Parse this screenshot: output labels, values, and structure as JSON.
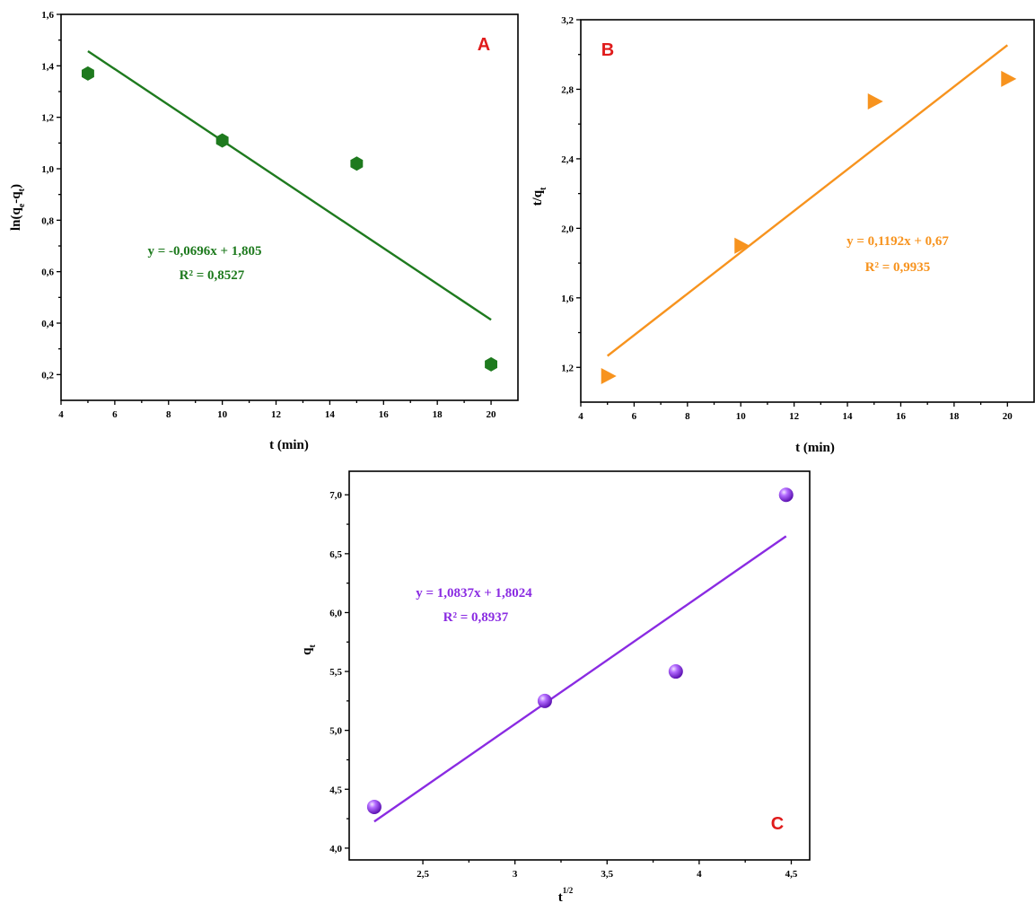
{
  "chart_data": [
    {
      "id": "A",
      "type": "scatter",
      "panel_label": "A",
      "xlabel": "t (min)",
      "ylabel": "ln(qe-qt)",
      "ylabel_parts": {
        "main": "ln(q",
        "sub1": "e",
        "mid": "-q",
        "sub2": "t",
        "end": ")"
      },
      "xlim": [
        4,
        21
      ],
      "ylim": [
        0.1,
        1.6
      ],
      "xticks": [
        4,
        6,
        8,
        10,
        12,
        14,
        16,
        18,
        20
      ],
      "yticks": [
        0.2,
        0.4,
        0.6,
        0.8,
        1.0,
        1.2,
        1.4,
        1.6
      ],
      "decimal_comma": true,
      "color": "#1e7a1e",
      "marker": "hexagon",
      "x": [
        5,
        10,
        15,
        20
      ],
      "y": [
        1.37,
        1.11,
        1.02,
        0.24
      ],
      "fit": {
        "slope": -0.0696,
        "intercept": 1.805,
        "x_range": [
          5,
          20
        ]
      },
      "equation": "y = -0,0696x + 1,805",
      "r2": "R² = 0,8527"
    },
    {
      "id": "B",
      "type": "scatter",
      "panel_label": "B",
      "xlabel": "t (min)",
      "ylabel": "t/qt",
      "ylabel_parts": {
        "main": "t/q",
        "sub1": "t"
      },
      "xlim": [
        4,
        21
      ],
      "ylim": [
        1.0,
        3.2
      ],
      "xticks": [
        4,
        6,
        8,
        10,
        12,
        14,
        16,
        18,
        20
      ],
      "yticks": [
        1.2,
        1.6,
        2.0,
        2.4,
        2.8,
        3.2
      ],
      "decimal_comma": true,
      "color": "#f7931e",
      "marker": "triangle-right",
      "x": [
        5,
        10,
        15,
        20
      ],
      "y": [
        1.15,
        1.9,
        2.73,
        2.86
      ],
      "fit": {
        "slope": 0.1192,
        "intercept": 0.67,
        "x_range": [
          5,
          20
        ]
      },
      "equation": "y = 0,1192x + 0,67",
      "r2": "R² = 0,9935"
    },
    {
      "id": "C",
      "type": "scatter",
      "panel_label": "C",
      "xlabel": "t1/2",
      "xlabel_parts": {
        "main": "t",
        "sup": "1/2"
      },
      "ylabel": "qt",
      "ylabel_parts": {
        "main": "q",
        "sub1": "t"
      },
      "xlim": [
        2.1,
        4.6
      ],
      "ylim": [
        3.9,
        7.2
      ],
      "xticks": [
        2.5,
        3.0,
        3.5,
        4.0,
        4.5
      ],
      "yticks": [
        4.0,
        4.5,
        5.0,
        5.5,
        6.0,
        6.5,
        7.0
      ],
      "decimal_comma": true,
      "color": "#8a2be2",
      "marker": "sphere",
      "x": [
        2.236,
        3.162,
        3.873,
        4.472
      ],
      "y": [
        4.35,
        5.25,
        5.5,
        7.0
      ],
      "fit": {
        "slope": 1.0837,
        "intercept": 1.8024,
        "x_range": [
          2.236,
          4.472
        ]
      },
      "equation": "y = 1,0837x + 1,8024",
      "r2": "R² = 0,8937"
    }
  ]
}
